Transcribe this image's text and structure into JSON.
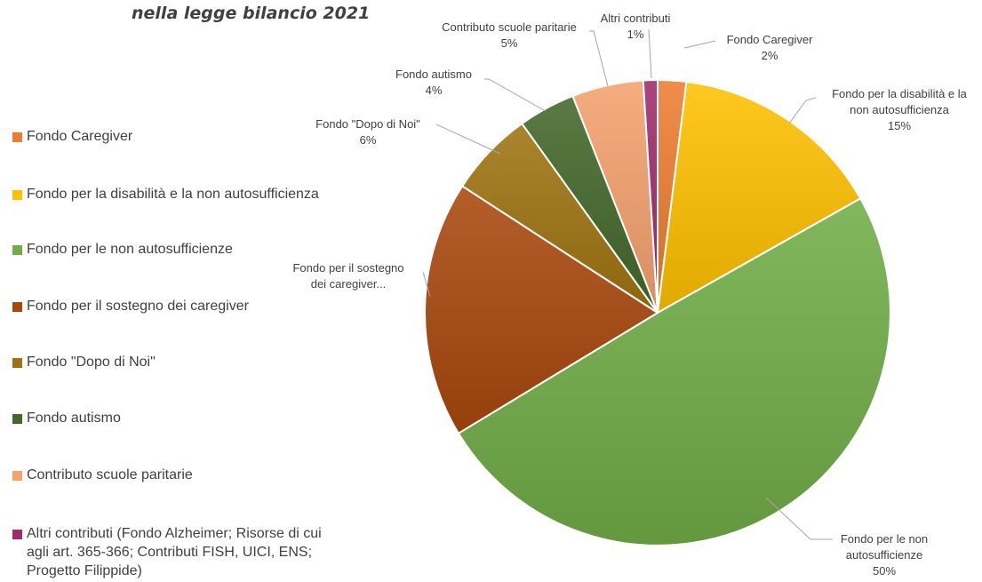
{
  "title": "nella legge bilancio 2021",
  "chart_data": {
    "type": "pie",
    "title": "nella legge bilancio 2021",
    "series": [
      {
        "name": "Fondo Caregiver",
        "value": 2,
        "color": "#ED7D31",
        "label_lines": [
          "Fondo Caregiver",
          "2%"
        ]
      },
      {
        "name": "Fondo per la disabilità e la non autosufficienza",
        "value": 15,
        "color": "#FFC000",
        "label_lines": [
          "Fondo per la disabilità e la",
          "non autosufficienza",
          "15%"
        ]
      },
      {
        "name": "Fondo per le non autosufficienze",
        "value": 50,
        "color": "#70AD47",
        "label_lines": [
          "Fondo per le non",
          "autosufficienze",
          "50%"
        ]
      },
      {
        "name": "Fondo per il sostegno dei caregiver",
        "value": 18,
        "color": "#A9480E",
        "label_lines": [
          "Fondo per il sostegno",
          "dei caregiver..."
        ]
      },
      {
        "name": "Fondo \"Dopo di Noi\"",
        "value": 6,
        "color": "#9E7410",
        "label_lines": [
          "Fondo \"Dopo di Noi\"",
          "6%"
        ]
      },
      {
        "name": "Fondo autismo",
        "value": 4,
        "color": "#43682B",
        "label_lines": [
          "Fondo autismo",
          "4%"
        ]
      },
      {
        "name": "Contributo scuole paritarie",
        "value": 5,
        "color": "#F4A26E",
        "label_lines": [
          "Contributo scuole paritarie",
          "5%"
        ]
      },
      {
        "name": "Altri contributi",
        "value": 1,
        "color": "#A02B6E",
        "label_lines": [
          "Altri contributi",
          "1%"
        ]
      }
    ],
    "legend": {
      "position": "left",
      "items": [
        {
          "label": "Fondo Caregiver",
          "color": "#ED7D31"
        },
        {
          "label": "Fondo per la disabilità e la non autosufficienza",
          "color": "#FFC000"
        },
        {
          "label": "Fondo per le non autosufficienze",
          "color": "#70AD47"
        },
        {
          "label": "Fondo per il sostegno dei caregiver",
          "color": "#A9480E"
        },
        {
          "label": "Fondo \"Dopo di Noi\"",
          "color": "#9E7410"
        },
        {
          "label": "Fondo autismo",
          "color": "#43682B"
        },
        {
          "label": "Contributo scuole paritarie",
          "color": "#F4A26E"
        },
        {
          "label": "Altri contributi (Fondo Alzheimer; Risorse di cui agli art.  365-366; Contributi FISH, UICI, ENS; Progetto Filippide)",
          "color": "#A02B6E"
        }
      ]
    }
  }
}
